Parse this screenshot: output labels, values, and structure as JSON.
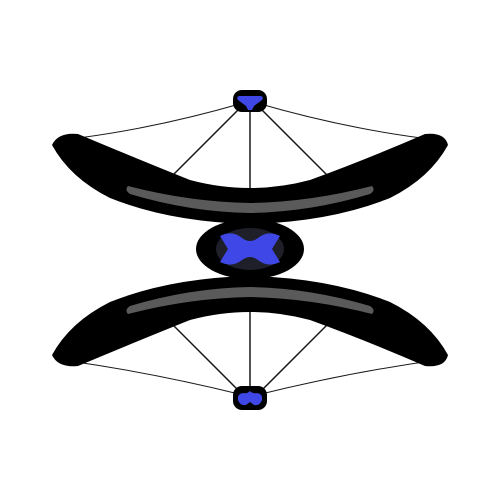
{
  "artwork": {
    "subject": "symmetric-double-bow-emblem",
    "colors": {
      "background": "#ffffff",
      "limb": "#000000",
      "limb_highlight": "#555555",
      "string": "#1a1a1a",
      "gem": "#3f48e6",
      "gem_dark": "#1f1f2a"
    },
    "parts": {
      "top_limb": "upper-bow-limb",
      "bottom_limb": "lower-bow-limb",
      "center": "central-gem",
      "top_node": "top-nock-gem",
      "bottom_node": "bottom-nock-gem"
    }
  }
}
